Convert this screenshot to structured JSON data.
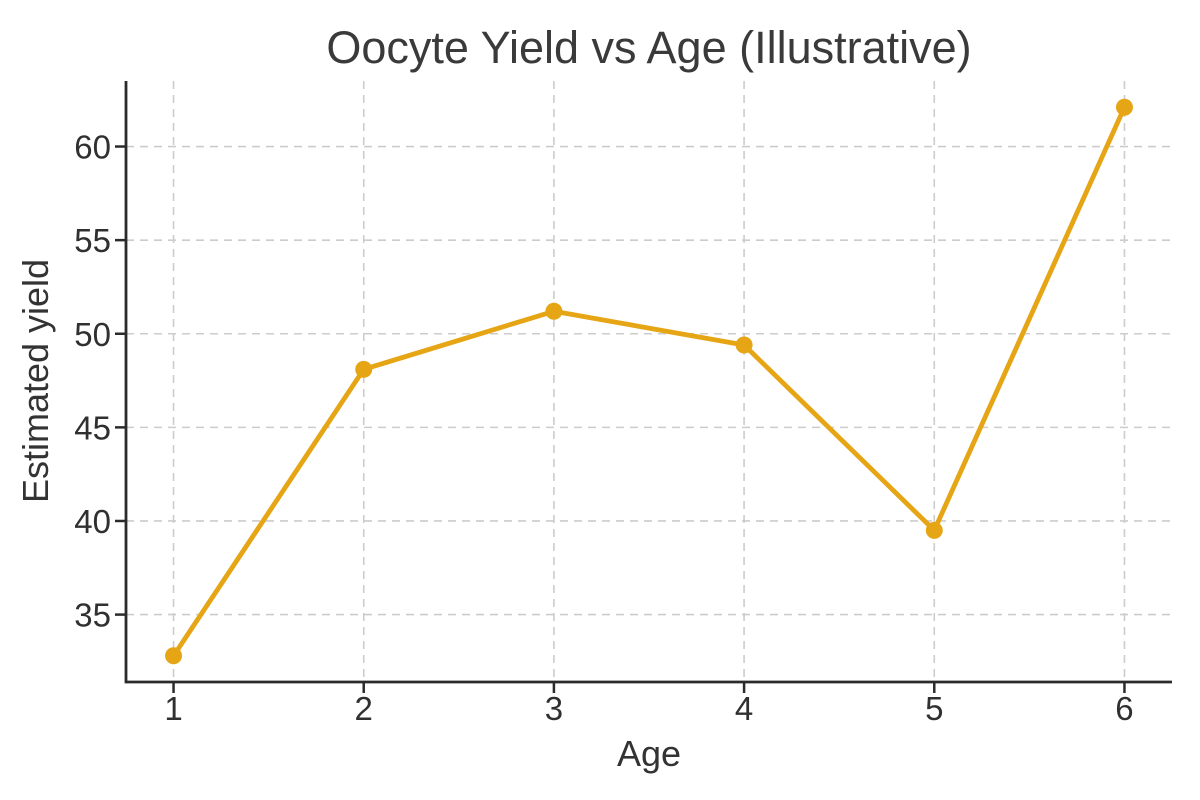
{
  "chart_data": {
    "type": "line",
    "title": "Oocyte Yield vs Age (Illustrative)",
    "xlabel": "Age",
    "ylabel": "Estimated yield",
    "x": [
      1,
      2,
      3,
      4,
      5,
      6
    ],
    "values": [
      32.8,
      48.1,
      51.2,
      49.4,
      39.5,
      62.1
    ],
    "series_name": "Estimated yield",
    "xticks": [
      1,
      2,
      3,
      4,
      5,
      6
    ],
    "yticks": [
      35,
      40,
      45,
      50,
      55,
      60
    ],
    "xlim": [
      0.75,
      6.25
    ],
    "ylim": [
      31.4,
      63.5
    ],
    "grid": true,
    "grid_style": "dashed",
    "legend_position": "none",
    "marker": "circle",
    "line_color": "#E6A514",
    "grid_color": "#CCCCCC",
    "axis_color": "#2B2B2B",
    "text_color": "#303030",
    "title_color": "#3A3A3A",
    "background_color": "#FFFFFF"
  }
}
